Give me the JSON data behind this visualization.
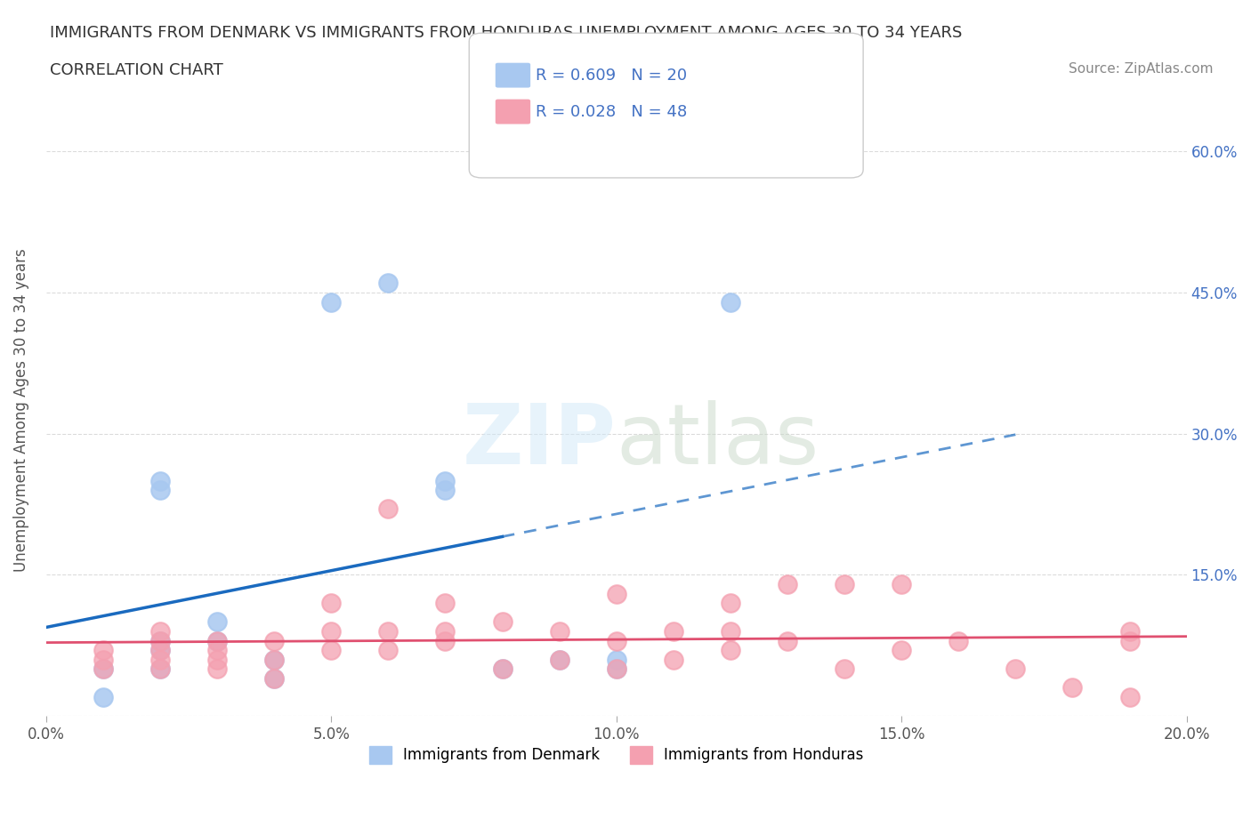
{
  "title_line1": "IMMIGRANTS FROM DENMARK VS IMMIGRANTS FROM HONDURAS UNEMPLOYMENT AMONG AGES 30 TO 34 YEARS",
  "title_line2": "CORRELATION CHART",
  "source_text": "Source: ZipAtlas.com",
  "ylabel": "Unemployment Among Ages 30 to 34 years",
  "xlim": [
    0.0,
    0.2
  ],
  "ylim": [
    0.0,
    0.65
  ],
  "denmark_color": "#a8c8f0",
  "honduras_color": "#f4a0b0",
  "denmark_line_color": "#1a6abf",
  "honduras_line_color": "#e05070",
  "denmark_R": 0.609,
  "denmark_N": 20,
  "honduras_R": 0.028,
  "honduras_N": 48,
  "denmark_x": [
    0.01,
    0.01,
    0.02,
    0.02,
    0.02,
    0.02,
    0.02,
    0.03,
    0.03,
    0.04,
    0.04,
    0.05,
    0.06,
    0.07,
    0.07,
    0.08,
    0.09,
    0.1,
    0.1,
    0.12
  ],
  "denmark_y": [
    0.05,
    0.02,
    0.05,
    0.07,
    0.08,
    0.24,
    0.25,
    0.08,
    0.1,
    0.04,
    0.06,
    0.44,
    0.46,
    0.24,
    0.25,
    0.05,
    0.06,
    0.05,
    0.06,
    0.44
  ],
  "honduras_x": [
    0.01,
    0.01,
    0.01,
    0.02,
    0.02,
    0.02,
    0.02,
    0.02,
    0.03,
    0.03,
    0.03,
    0.03,
    0.04,
    0.04,
    0.04,
    0.05,
    0.05,
    0.05,
    0.06,
    0.06,
    0.06,
    0.07,
    0.07,
    0.07,
    0.08,
    0.08,
    0.09,
    0.09,
    0.1,
    0.1,
    0.1,
    0.11,
    0.11,
    0.12,
    0.12,
    0.12,
    0.13,
    0.13,
    0.14,
    0.14,
    0.15,
    0.15,
    0.16,
    0.17,
    0.18,
    0.19,
    0.19,
    0.19
  ],
  "honduras_y": [
    0.05,
    0.06,
    0.07,
    0.05,
    0.06,
    0.07,
    0.08,
    0.09,
    0.05,
    0.06,
    0.07,
    0.08,
    0.04,
    0.06,
    0.08,
    0.07,
    0.09,
    0.12,
    0.07,
    0.09,
    0.22,
    0.08,
    0.09,
    0.12,
    0.05,
    0.1,
    0.06,
    0.09,
    0.05,
    0.08,
    0.13,
    0.06,
    0.09,
    0.07,
    0.09,
    0.12,
    0.08,
    0.14,
    0.05,
    0.14,
    0.07,
    0.14,
    0.08,
    0.05,
    0.03,
    0.02,
    0.08,
    0.09
  ],
  "background_color": "#ffffff",
  "grid_color": "#cccccc"
}
